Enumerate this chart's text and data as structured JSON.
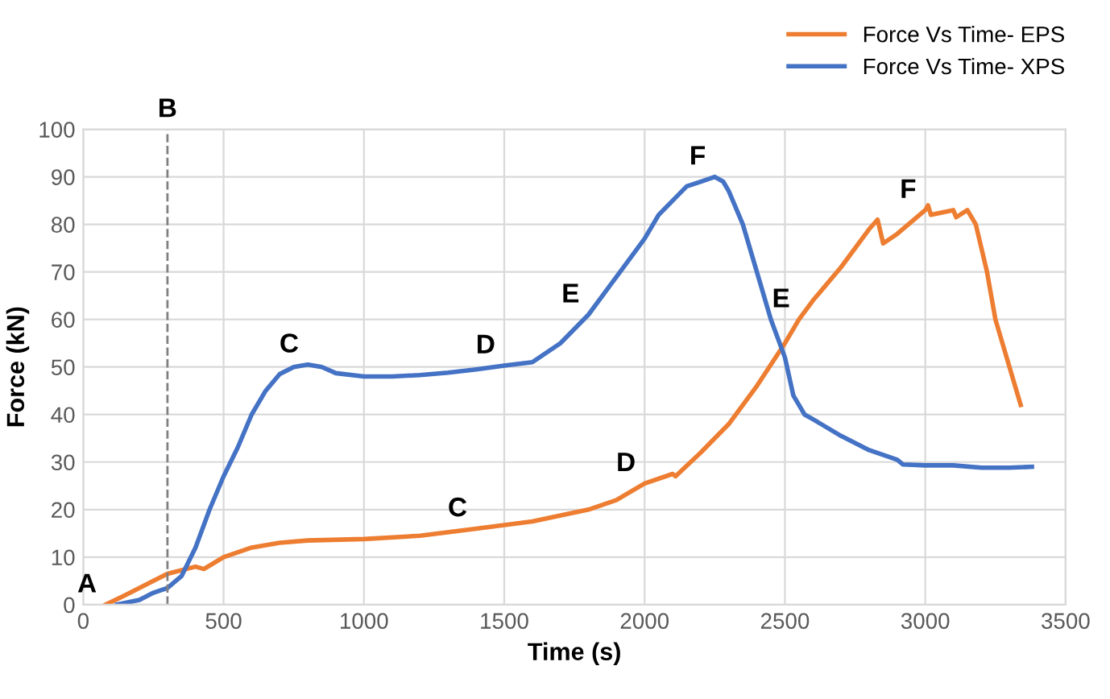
{
  "chart_data": {
    "type": "line",
    "xlabel": "Time (s)",
    "ylabel": "Force (kN)",
    "xlim": [
      0,
      3500
    ],
    "xticks": [
      0,
      500,
      1000,
      1500,
      2000,
      2500,
      3000,
      3500
    ],
    "ylim": [
      0,
      100
    ],
    "yticks": [
      0,
      10,
      20,
      30,
      40,
      50,
      60,
      70,
      80,
      90,
      100
    ],
    "grid": true,
    "legend": "top right",
    "line_style": "solid",
    "marker": "none",
    "series": [
      {
        "name": "Force Vs Time- EPS",
        "color": "#ed7d31",
        "x": [
          80,
          150,
          250,
          300,
          400,
          430,
          500,
          600,
          700,
          800,
          1000,
          1200,
          1400,
          1600,
          1800,
          1900,
          2000,
          2100,
          2110,
          2200,
          2300,
          2400,
          2500,
          2550,
          2600,
          2700,
          2800,
          2830,
          2850,
          2900,
          3000,
          3010,
          3020,
          3100,
          3110,
          3150,
          3180,
          3220,
          3250,
          3300,
          3340
        ],
        "values": [
          0,
          2,
          5,
          6.5,
          8,
          7.5,
          10,
          12,
          13,
          13.5,
          13.8,
          14.5,
          16,
          17.5,
          20,
          22,
          25.5,
          27.5,
          27,
          32,
          38,
          46,
          55,
          60,
          64,
          71,
          79,
          81,
          76,
          78,
          83,
          84,
          82,
          83,
          81.5,
          83,
          80,
          70,
          60,
          50,
          42
        ]
      },
      {
        "name": "Force Vs Time- XPS",
        "color": "#4472c4",
        "x": [
          120,
          200,
          250,
          300,
          350,
          400,
          450,
          500,
          550,
          600,
          650,
          700,
          750,
          800,
          850,
          900,
          1000,
          1100,
          1200,
          1300,
          1400,
          1500,
          1600,
          1700,
          1800,
          1900,
          2000,
          2050,
          2100,
          2150,
          2200,
          2250,
          2280,
          2300,
          2350,
          2400,
          2450,
          2500,
          2530,
          2570,
          2600,
          2700,
          2800,
          2900,
          2920,
          3000,
          3100,
          3200,
          3300,
          3380
        ],
        "values": [
          0,
          1,
          2.5,
          3.5,
          6,
          12,
          20,
          27,
          33,
          40,
          45,
          48.5,
          50,
          50.5,
          50,
          48.7,
          48,
          48,
          48.3,
          48.8,
          49.5,
          50.3,
          51,
          55,
          61,
          69,
          77,
          82,
          85,
          88,
          89,
          90,
          89,
          87,
          80,
          70,
          60,
          52,
          44,
          40,
          39,
          35.5,
          32.5,
          30.5,
          29.5,
          29.3,
          29.3,
          28.8,
          28.8,
          29
        ]
      }
    ],
    "ref_lines": [
      {
        "axis": "x",
        "value": 300,
        "label": "B",
        "line_style": "dashed",
        "color": "#808080"
      }
    ],
    "annotations": [
      {
        "text": "A",
        "x": 80,
        "y": 0
      },
      {
        "text": "C",
        "x": 800,
        "y": 50.5
      },
      {
        "text": "D",
        "x": 1500,
        "y": 50.3
      },
      {
        "text": "E",
        "x": 1800,
        "y": 61
      },
      {
        "text": "F",
        "x": 2250,
        "y": 90
      },
      {
        "text": "C",
        "x": 1400,
        "y": 16
      },
      {
        "text": "D",
        "x": 2000,
        "y": 25.5
      },
      {
        "text": "E",
        "x": 2550,
        "y": 60
      },
      {
        "text": "F",
        "x": 3000,
        "y": 83
      }
    ]
  }
}
